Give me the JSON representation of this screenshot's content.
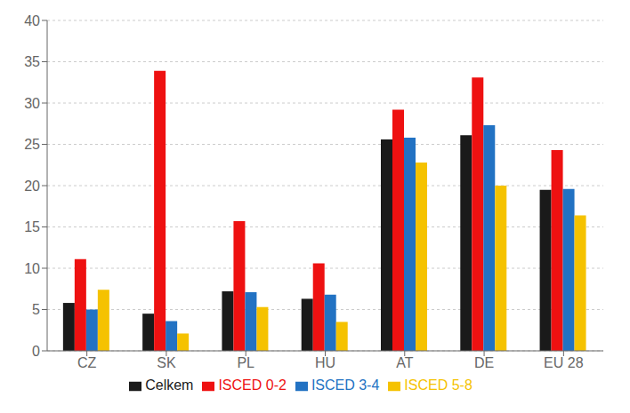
{
  "chart_data": {
    "type": "bar",
    "categories": [
      "CZ",
      "SK",
      "PL",
      "HU",
      "AT",
      "DE",
      "EU 28"
    ],
    "series": [
      {
        "name": "Celkem",
        "color": "#1a1a1a",
        "values": [
          5.8,
          4.5,
          7.2,
          6.3,
          25.6,
          26.1,
          19.5
        ]
      },
      {
        "name": "ISCED 0-2",
        "color": "#ee1111",
        "values": [
          11.1,
          33.9,
          15.7,
          10.6,
          29.2,
          33.1,
          24.3
        ]
      },
      {
        "name": "ISCED 3-4",
        "color": "#2272c3",
        "values": [
          5.0,
          3.6,
          7.1,
          6.8,
          25.8,
          27.3,
          19.6
        ]
      },
      {
        "name": "ISCED 5-8",
        "color": "#f5c200",
        "values": [
          7.4,
          2.1,
          5.3,
          3.5,
          22.8,
          20.0,
          16.4
        ]
      }
    ],
    "ylim": [
      0,
      40
    ],
    "yticks": [
      0,
      5,
      10,
      15,
      20,
      25,
      30,
      35,
      40
    ],
    "grid": true,
    "legend": "bottom"
  }
}
